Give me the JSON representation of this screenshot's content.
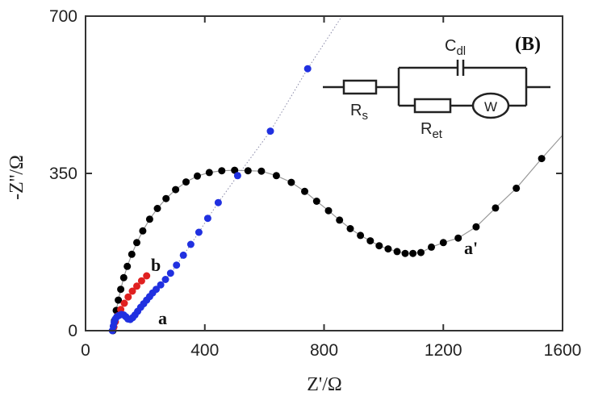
{
  "chart_data": {
    "type": "scatter",
    "title": "",
    "xlabel": "Z'/Ω",
    "ylabel": "-Z''/Ω",
    "xlim": [
      0,
      1600
    ],
    "ylim": [
      0,
      700
    ],
    "xticks": [
      "0",
      "400",
      "800",
      "1200",
      "1600"
    ],
    "yticks": [
      "0",
      "350",
      "700"
    ],
    "grid": false,
    "legend": "none",
    "panel_label": "(B)",
    "series": [
      {
        "name": "a'",
        "color": "#000000",
        "fit_line": true,
        "x": [
          92,
          97,
          103,
          110,
          118,
          128,
          140,
          155,
          172,
          192,
          215,
          241,
          270,
          302,
          337,
          375,
          415,
          457,
          500,
          545,
          590,
          640,
          690,
          735,
          775,
          815,
          852,
          888,
          922,
          955,
          985,
          1015,
          1045,
          1072,
          1098,
          1125,
          1160,
          1200,
          1250,
          1310,
          1375,
          1445,
          1530
        ],
        "y": [
          0,
          22,
          45,
          68,
          92,
          118,
          143,
          170,
          196,
          222,
          248,
          272,
          294,
          314,
          331,
          344,
          352,
          356,
          357,
          356,
          355,
          345,
          330,
          310,
          288,
          267,
          246,
          227,
          212,
          200,
          189,
          182,
          176,
          172,
          172,
          174,
          186,
          196,
          206,
          231,
          273,
          317,
          383
        ]
      },
      {
        "name": "b",
        "color": "#e02020",
        "fit_line": false,
        "x": [
          95,
          100,
          108,
          118,
          130,
          143,
          157,
          172,
          188,
          205
        ],
        "y": [
          8,
          20,
          33,
          47,
          61,
          75,
          88,
          99,
          111,
          122
        ]
      },
      {
        "name": "a",
        "color": "#2030e0",
        "fit_line": true,
        "x": [
          90,
          93,
          96,
          100,
          105,
          112,
          120,
          128,
          135,
          142,
          150,
          158,
          166,
          175,
          185,
          195,
          205,
          215,
          225,
          237,
          252,
          268,
          285,
          305,
          328,
          353,
          380,
          410,
          445,
          510,
          620,
          745
        ],
        "y": [
          0,
          10,
          19,
          26,
          31,
          34,
          36,
          35,
          31,
          26,
          25,
          29,
          35,
          43,
          52,
          60,
          68,
          76,
          84,
          92,
          102,
          114,
          128,
          146,
          168,
          192,
          219,
          250,
          285,
          345,
          444,
          583
        ]
      }
    ],
    "inset_circuit": {
      "labels": [
        "R",
        "C",
        "R",
        "W"
      ],
      "subscripts": [
        "s",
        "dl",
        "et",
        ""
      ]
    }
  }
}
